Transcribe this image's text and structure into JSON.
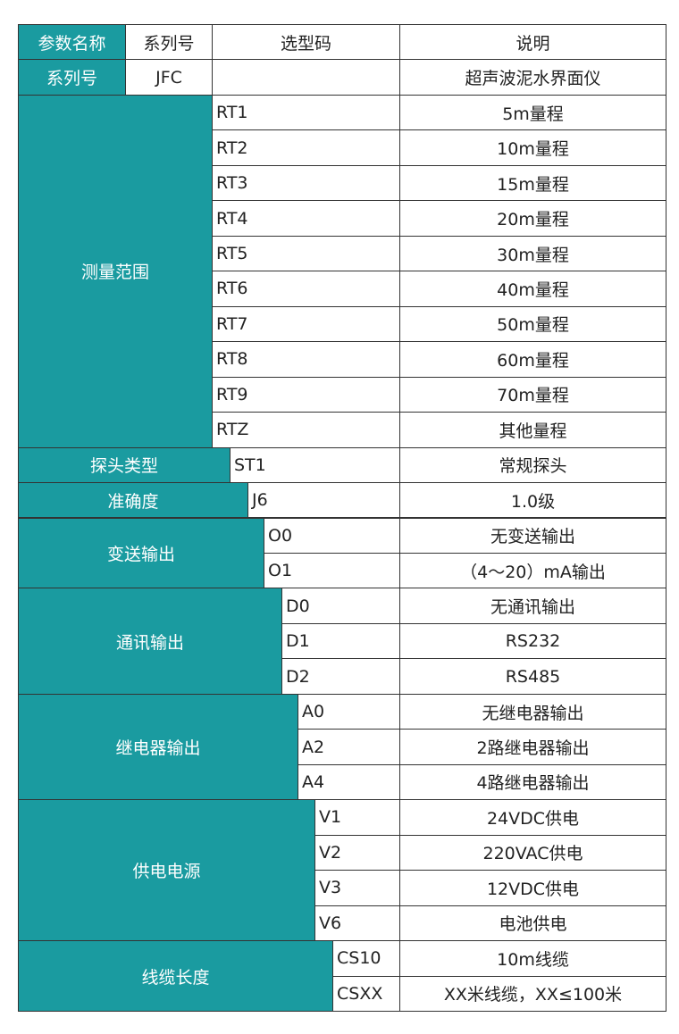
{
  "header": [
    "参数名称",
    "系列号",
    "选型码",
    "说明"
  ],
  "series_row": {
    "label": "系列号",
    "code": "JFC",
    "description": "超声波泥水界面仪"
  },
  "groups": [
    {
      "label": "测量范围",
      "options": [
        {
          "code": "RT1",
          "description": "5m量程"
        },
        {
          "code": "RT2",
          "description": "10m量程"
        },
        {
          "code": "RT3",
          "description": "15m量程"
        },
        {
          "code": "RT4",
          "description": "20m量程"
        },
        {
          "code": "RT5",
          "description": "30m量程"
        },
        {
          "code": "RT6",
          "description": "40m量程"
        },
        {
          "code": "RT7",
          "description": "50m量程"
        },
        {
          "code": "RT8",
          "description": "60m量程"
        },
        {
          "code": "RT9",
          "description": "70m量程"
        },
        {
          "code": "RTZ",
          "description": "其他量程"
        }
      ]
    },
    {
      "label": "探头类型",
      "options": [
        {
          "code": "ST1",
          "description": "常规探头"
        }
      ]
    },
    {
      "label": "准确度",
      "options": [
        {
          "code": "J6",
          "description": "1.0级"
        }
      ]
    },
    {
      "label": "变送输出",
      "options": [
        {
          "code": "O0",
          "description": "无变送输出"
        },
        {
          "code": "O1",
          "description": "（4～20）mA输出"
        }
      ]
    },
    {
      "label": "通讯输出",
      "options": [
        {
          "code": "D0",
          "description": "无通讯输出"
        },
        {
          "code": "D1",
          "description": "RS232"
        },
        {
          "code": "D2",
          "description": "RS485"
        }
      ]
    },
    {
      "label": "继电器输出",
      "options": [
        {
          "code": "A0",
          "description": "无继电器输出"
        },
        {
          "code": "A2",
          "description": "2路继电器输出"
        },
        {
          "code": "A4",
          "description": "4路继电器输出"
        }
      ]
    },
    {
      "label": "供电电源",
      "options": [
        {
          "code": "V1",
          "description": "24VDC供电"
        },
        {
          "code": "V2",
          "description": "220VAC供电"
        },
        {
          "code": "V3",
          "description": "12VDC供电"
        },
        {
          "code": "V6",
          "description": "电池供电"
        }
      ]
    },
    {
      "label": "线缆长度",
      "options": [
        {
          "code": "CS10",
          "description": "10m线缆"
        },
        {
          "code": "CSXX",
          "description": "XX米线缆，XX≤100米"
        }
      ]
    }
  ]
}
